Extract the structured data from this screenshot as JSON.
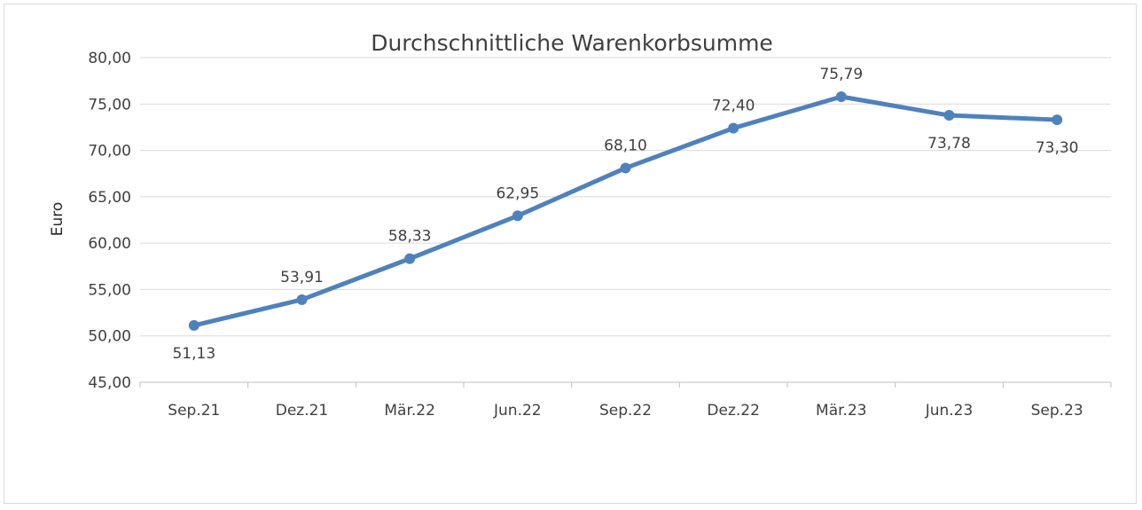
{
  "chart_data": {
    "type": "line",
    "title": "Durchschnittliche Warenkorbsumme",
    "xlabel": "",
    "ylabel": "Euro",
    "categories": [
      "Sep.21",
      "Dez.21",
      "Mär.22",
      "Jun.22",
      "Sep.22",
      "Dez.22",
      "Mär.23",
      "Jun.23",
      "Sep.23"
    ],
    "series": [
      {
        "values": [
          51.13,
          53.91,
          58.33,
          62.95,
          68.1,
          72.4,
          75.79,
          73.78,
          73.3
        ],
        "data_labels": [
          "51,13",
          "53,91",
          "58,33",
          "62,95",
          "68,10",
          "72,40",
          "75,79",
          "73,78",
          "73,30"
        ],
        "label_positions": [
          "below",
          "above",
          "above",
          "above",
          "above",
          "above",
          "above",
          "below",
          "below"
        ],
        "color": "#4f81bd"
      }
    ],
    "ylim": [
      45,
      80
    ],
    "yticks": [
      45,
      50,
      55,
      60,
      65,
      70,
      75,
      80
    ],
    "ytick_labels": [
      "45,00",
      "50,00",
      "55,00",
      "60,00",
      "65,00",
      "70,00",
      "75,00",
      "80,00"
    ],
    "grid": true,
    "legend": "none"
  }
}
